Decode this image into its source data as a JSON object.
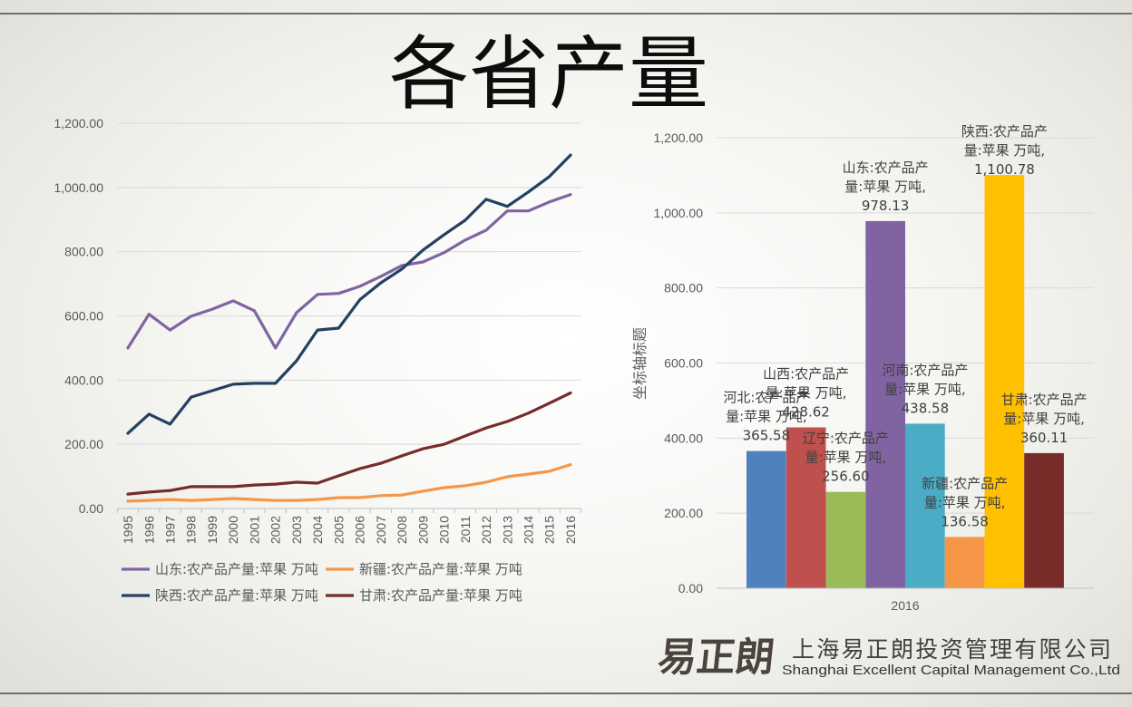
{
  "slide": {
    "title": "各省产量"
  },
  "logo": {
    "mark": "易正朗",
    "company_cn": "上海易正朗投资管理有限公司",
    "company_en": "Shanghai Excellent Capital Management Co.,Ltd",
    "color": "#4b443d"
  },
  "chart_data": [
    {
      "type": "line",
      "categories": [
        "1995",
        "1996",
        "1997",
        "1998",
        "1999",
        "2000",
        "2001",
        "2002",
        "2003",
        "2004",
        "2005",
        "2006",
        "2007",
        "2008",
        "2009",
        "2010",
        "2011",
        "2012",
        "2013",
        "2014",
        "2015",
        "2016"
      ],
      "ylim": [
        0,
        1200
      ],
      "yticks": [
        0,
        200,
        400,
        600,
        800,
        1000,
        1200
      ],
      "ytick_labels": [
        "0.00",
        "200.00",
        "400.00",
        "600.00",
        "800.00",
        "1,000.00",
        "1,200.00"
      ],
      "grid": true,
      "legend": "bottom",
      "series": [
        {
          "name": "山东:农产品产量:苹果 万吨",
          "color": "#8064a2",
          "values": [
            500,
            605,
            556,
            599,
            621,
            647,
            616,
            500,
            610,
            667,
            670,
            692,
            723,
            757,
            768,
            797,
            836,
            867,
            927,
            927,
            955,
            978.13
          ]
        },
        {
          "name": "新疆:农产品产量:苹果 万吨",
          "color": "#f79646",
          "values": [
            23,
            25,
            28,
            25,
            28,
            31,
            28,
            25,
            25,
            28,
            34,
            34,
            40,
            42,
            54,
            65,
            71,
            82,
            99,
            107,
            116,
            136.58
          ]
        },
        {
          "name": "陕西:农产品产量:苹果 万吨",
          "color": "#254061",
          "values": [
            234,
            294,
            263,
            347,
            367,
            387,
            390,
            390,
            460,
            556,
            562,
            650,
            703,
            746,
            805,
            853,
            898,
            963,
            941,
            986,
            1034,
            1100.78
          ]
        },
        {
          "name": "甘肃:农产品产量:苹果 万吨",
          "color": "#772c2a",
          "values": [
            45,
            51,
            56,
            68,
            68,
            68,
            73,
            76,
            82,
            79,
            102,
            124,
            141,
            164,
            186,
            200,
            226,
            251,
            271,
            297,
            328,
            360.11
          ]
        }
      ]
    },
    {
      "type": "bar",
      "categories": [
        "2016"
      ],
      "ylabel": "坐标轴标题",
      "ylim": [
        0,
        1200
      ],
      "yticks": [
        0,
        200,
        400,
        600,
        800,
        1000,
        1200
      ],
      "ytick_labels": [
        "0.00",
        "200.00",
        "400.00",
        "600.00",
        "800.00",
        "1,000.00",
        "1,200.00"
      ],
      "grid": true,
      "series": [
        {
          "name": "河北:农产品产量:苹果 万吨",
          "color": "#4f81bd",
          "values": [
            365.58
          ],
          "label": "365.58"
        },
        {
          "name": "山西:农产品产量:苹果 万吨",
          "color": "#c0504d",
          "values": [
            428.62
          ],
          "label": "428.62"
        },
        {
          "name": "辽宁:农产品产量:苹果 万吨",
          "color": "#9bbb59",
          "values": [
            256.6
          ],
          "label": "256.60"
        },
        {
          "name": "山东:农产品产量:苹果 万吨",
          "color": "#8064a2",
          "values": [
            978.13
          ],
          "label": "978.13"
        },
        {
          "name": "河南:农产品产量:苹果 万吨",
          "color": "#4bacc6",
          "values": [
            438.58
          ],
          "label": "438.58"
        },
        {
          "name": "新疆:农产品产量:苹果 万吨",
          "color": "#f79646",
          "values": [
            136.58
          ],
          "label": "136.58"
        },
        {
          "name": "陕西:农产品产量:苹果 万吨",
          "color": "#ffc000",
          "values": [
            1100.78
          ],
          "label": "1,100.78"
        },
        {
          "name": "甘肃:农产品产量:苹果 万吨",
          "color": "#772c2a",
          "values": [
            360.11
          ],
          "label": "360.11"
        }
      ]
    }
  ]
}
